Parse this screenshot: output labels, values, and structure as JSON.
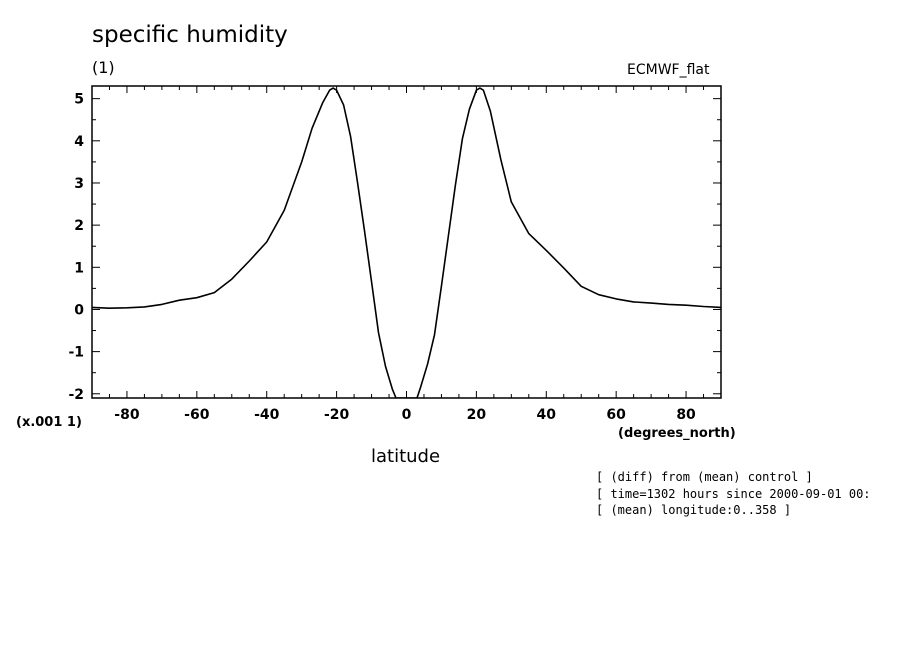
{
  "header": {
    "title": "specific humidity",
    "units": "(1)",
    "dataset": "ECMWF_flat",
    "scale_note": "(x.001 1)",
    "x_units": "(degrees_north)",
    "x_label": "latitude"
  },
  "notes": [
    "[ (diff) from (mean) control ]",
    "[ time=1302 hours since 2000-09-01 00:",
    "[ (mean) longitude:0..358 ]"
  ],
  "chart_data": {
    "type": "line",
    "title": "specific humidity",
    "xlabel": "latitude",
    "ylabel": "(1)",
    "xlim": [
      -90,
      90
    ],
    "ylim": [
      -2.1,
      5.3
    ],
    "xticks": [
      -80,
      -60,
      -40,
      -20,
      0,
      20,
      40,
      60,
      80
    ],
    "xtick_labels": [
      "-80",
      "-60",
      "-40",
      "-20",
      "0",
      "20",
      "40",
      "60",
      "80"
    ],
    "yticks": [
      -2,
      -1,
      0,
      1,
      2,
      3,
      4,
      5
    ],
    "ytick_labels": [
      "-2",
      "-1",
      "0",
      "1",
      "2",
      "3",
      "4",
      "5"
    ],
    "grid": false,
    "line_color": "#000000",
    "series": [
      {
        "x": [
          -90,
          -85,
          -80,
          -75,
          -70,
          -65,
          -60,
          -55,
          -50,
          -45,
          -40,
          -35,
          -30,
          -27,
          -24,
          -22,
          -21,
          -20,
          -18,
          -16,
          -14,
          -12,
          -10,
          -8,
          -6,
          -4,
          -3,
          3,
          4,
          6,
          8,
          10,
          12,
          14,
          16,
          18,
          20,
          21,
          22,
          24,
          27,
          30,
          35,
          40,
          45,
          50,
          55,
          60,
          65,
          70,
          75,
          80,
          85,
          90
        ],
        "y": [
          0.05,
          0.03,
          0.04,
          0.06,
          0.12,
          0.22,
          0.28,
          0.4,
          0.72,
          1.15,
          1.6,
          2.35,
          3.5,
          4.3,
          4.9,
          5.2,
          5.25,
          5.2,
          4.85,
          4.1,
          3.0,
          1.85,
          0.65,
          -0.55,
          -1.35,
          -1.9,
          -2.1,
          -2.1,
          -1.85,
          -1.3,
          -0.6,
          0.55,
          1.75,
          2.95,
          4.05,
          4.75,
          5.2,
          5.25,
          5.2,
          4.7,
          3.55,
          2.55,
          1.8,
          1.4,
          0.98,
          0.55,
          0.35,
          0.25,
          0.18,
          0.15,
          0.12,
          0.1,
          0.07,
          0.05
        ]
      }
    ]
  }
}
